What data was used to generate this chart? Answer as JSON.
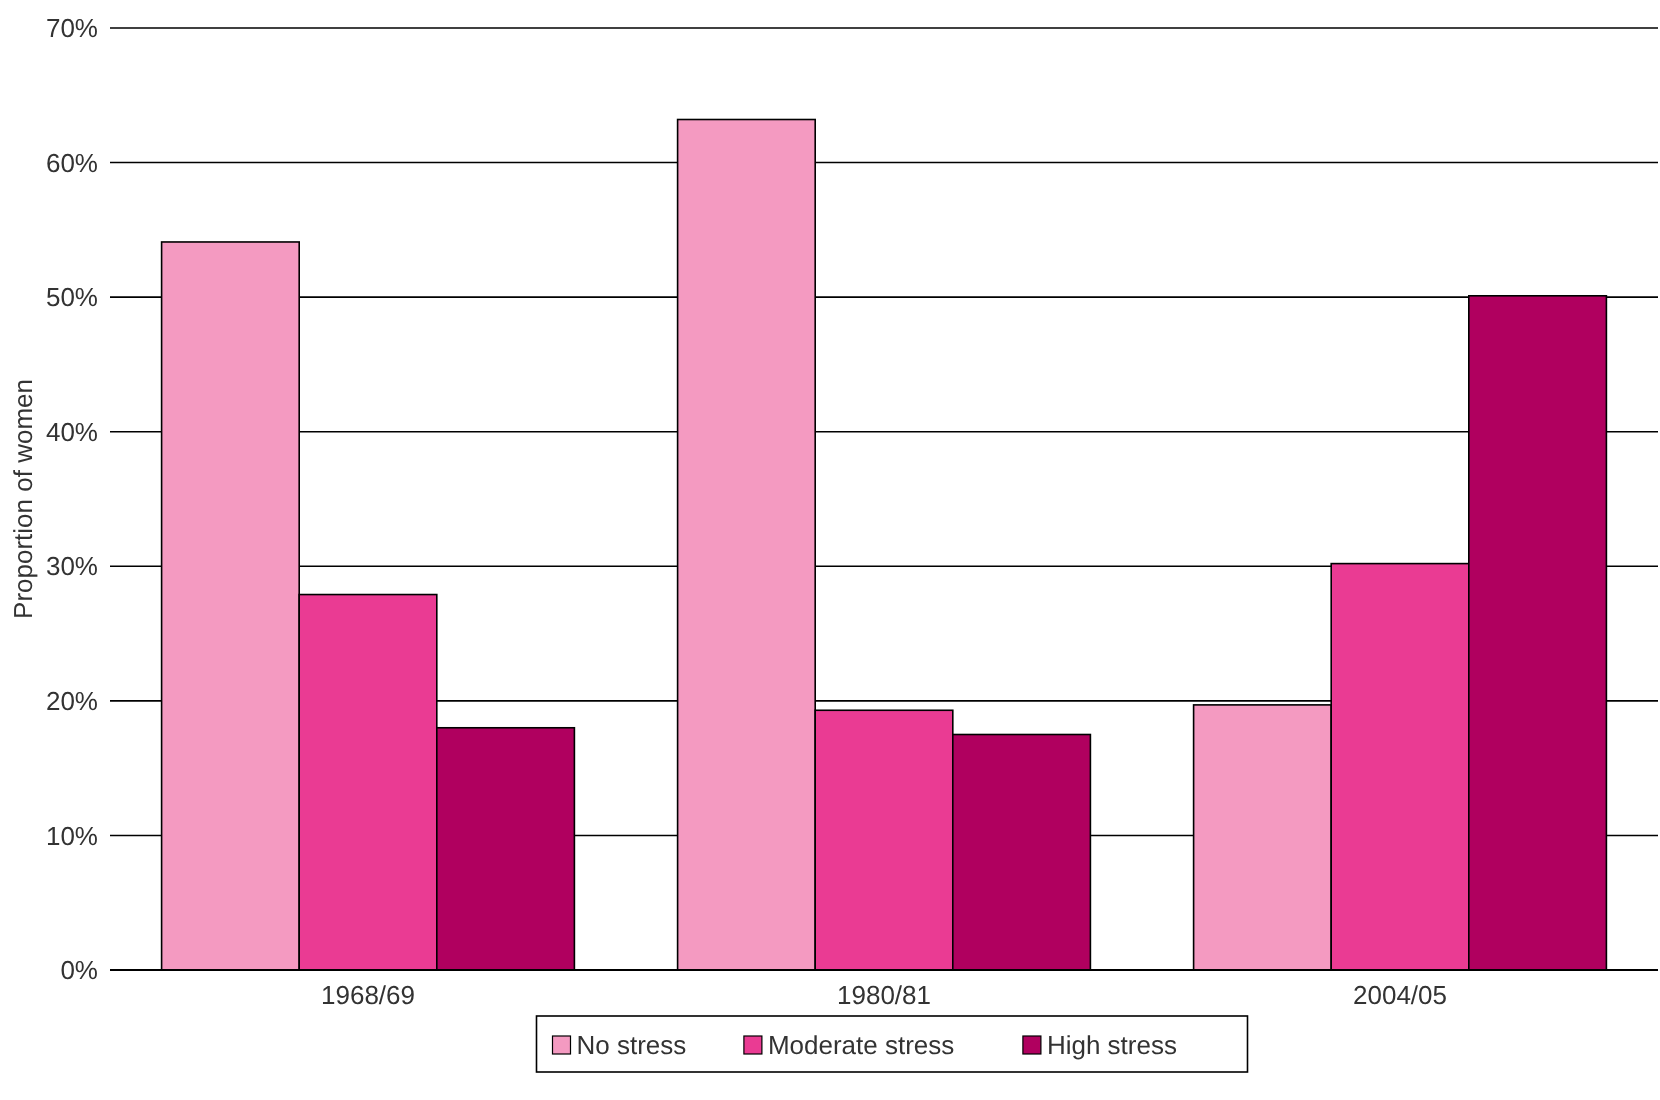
{
  "chart_data": {
    "type": "bar",
    "ylabel": "Proportion of women",
    "categories": [
      "1968/69",
      "1980/81",
      "2004/05"
    ],
    "series": [
      {
        "name": "No stress",
        "color": "#f49ac1",
        "values": [
          54.1,
          63.2,
          19.7
        ]
      },
      {
        "name": "Moderate stress",
        "color": "#ea3b93",
        "values": [
          27.9,
          19.3,
          30.2
        ]
      },
      {
        "name": "High stress",
        "color": "#b0005f",
        "values": [
          18,
          17.5,
          50.1
        ]
      }
    ],
    "ylim": [
      0,
      70
    ],
    "yticks": [
      {
        "value": 0,
        "label": "0%"
      },
      {
        "value": 10,
        "label": "10%"
      },
      {
        "value": 20,
        "label": "20%"
      },
      {
        "value": 30,
        "label": "30%"
      },
      {
        "value": 40,
        "label": "40%"
      },
      {
        "value": 50,
        "label": "50%"
      },
      {
        "value": 60,
        "label": "60%"
      },
      {
        "value": 70,
        "label": "70%"
      }
    ],
    "grid": "y",
    "legend": "bottom"
  }
}
